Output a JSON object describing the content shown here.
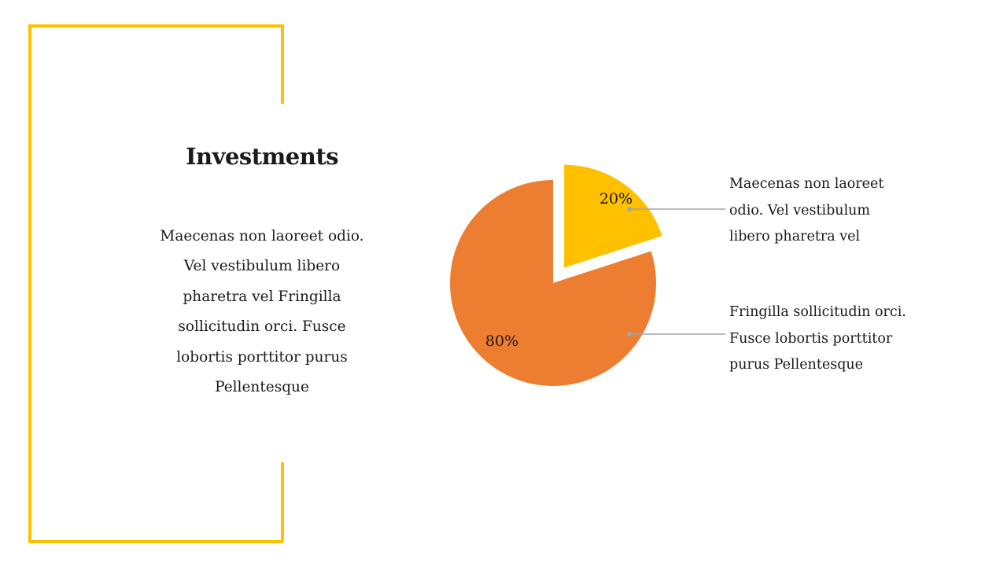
{
  "slide": {
    "title": "Investments",
    "body_lines": [
      "Maecenas non laoreet odio.",
      "Vel vestibulum libero",
      "pharetra vel Fringilla",
      "sollicitudin orci. Fusce",
      "lobortis porttitor purus",
      "Pellentesque"
    ],
    "accent_color": "#FFC000"
  },
  "callouts": [
    {
      "lines": [
        "Maecenas non laoreet",
        "odio. Vel vestibulum",
        "libero pharetra vel"
      ]
    },
    {
      "lines": [
        "Fringilla sollicitudin orci.",
        "Fusce lobortis porttitor",
        "purus Pellentesque"
      ]
    }
  ],
  "chart_data": {
    "type": "pie",
    "slices": [
      {
        "label": "20%",
        "value": 20,
        "color": "#FFC000",
        "exploded": true
      },
      {
        "label": "80%",
        "value": 80,
        "color": "#ED7D31",
        "exploded": false
      }
    ],
    "leader_line_color": "#A6A6A6"
  }
}
